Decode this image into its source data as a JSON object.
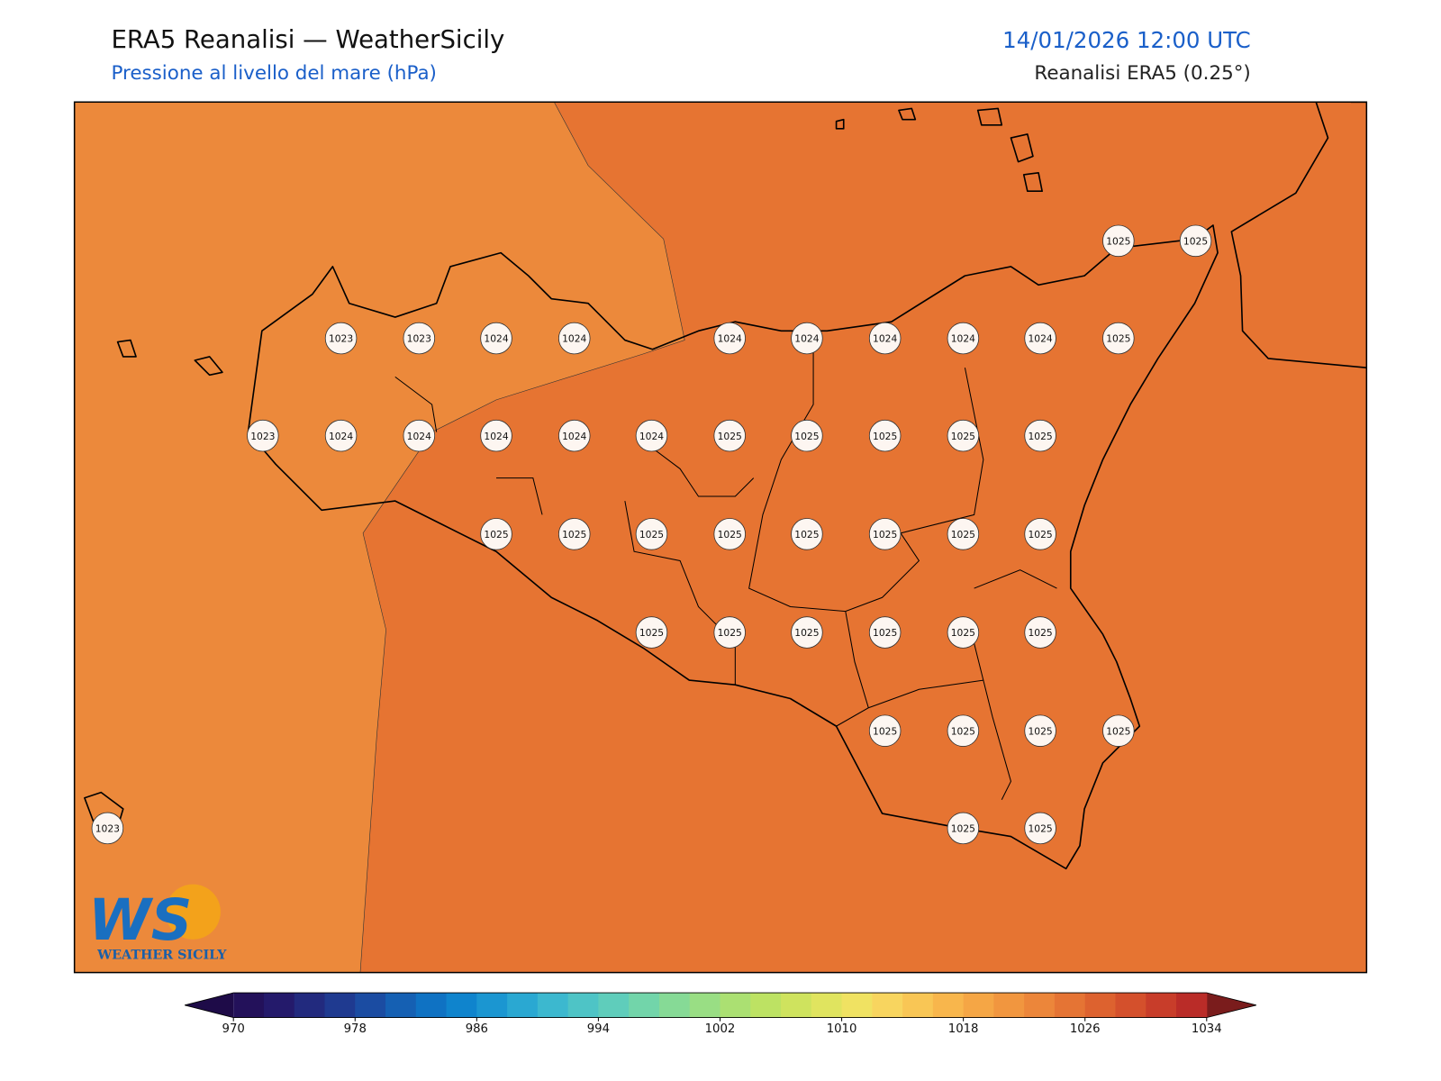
{
  "header": {
    "title": "ERA5 Reanalisi — WeatherSicily",
    "subtitle": "Pressione al livello del mare (hPa)",
    "datetime": "14/01/2026 12:00 UTC",
    "source": "Reanalisi ERA5 (0.25°)"
  },
  "map": {
    "region_colors": [
      "#ec893b",
      "#e67432"
    ],
    "labels": [
      1025,
      1025,
      1023,
      1023,
      1024,
      1024,
      1024,
      1024,
      1024,
      1024,
      1024,
      1025,
      1023,
      1024,
      1024,
      1024,
      1024,
      1024,
      1025,
      1025,
      1025,
      1025,
      1025,
      1025,
      1025,
      1025,
      1025,
      1025,
      1025,
      1025,
      1025,
      1025,
      1025,
      1025,
      1025,
      1025,
      1025,
      1025,
      1025,
      1025,
      1025,
      1023,
      1025,
      1025
    ]
  },
  "colorbar": {
    "ticks": [
      970,
      978,
      986,
      994,
      1002,
      1010,
      1018,
      1026,
      1034
    ],
    "colors": [
      "#23115a",
      "#241a6b",
      "#222a7e",
      "#1f3a90",
      "#1b4ca2",
      "#1560b3",
      "#0f72c3",
      "#0f84cd",
      "#1b96d1",
      "#2aa8d2",
      "#3cb8cf",
      "#4ec4c6",
      "#5fcdbb",
      "#72d5aa",
      "#86da96",
      "#99de84",
      "#abe072",
      "#bde263",
      "#cfe35e",
      "#e0e45f",
      "#f0e262",
      "#f8d55f",
      "#f9c655",
      "#f8b64c",
      "#f5a645",
      "#f1963f",
      "#ec863a",
      "#e57434",
      "#dd622f",
      "#d4502c",
      "#c83d2a",
      "#ba2c28"
    ],
    "under_color": "#1e0b48",
    "over_color": "#7a1c1c"
  },
  "logo": {
    "mark": "WS",
    "name": "WEATHER SICILY"
  }
}
